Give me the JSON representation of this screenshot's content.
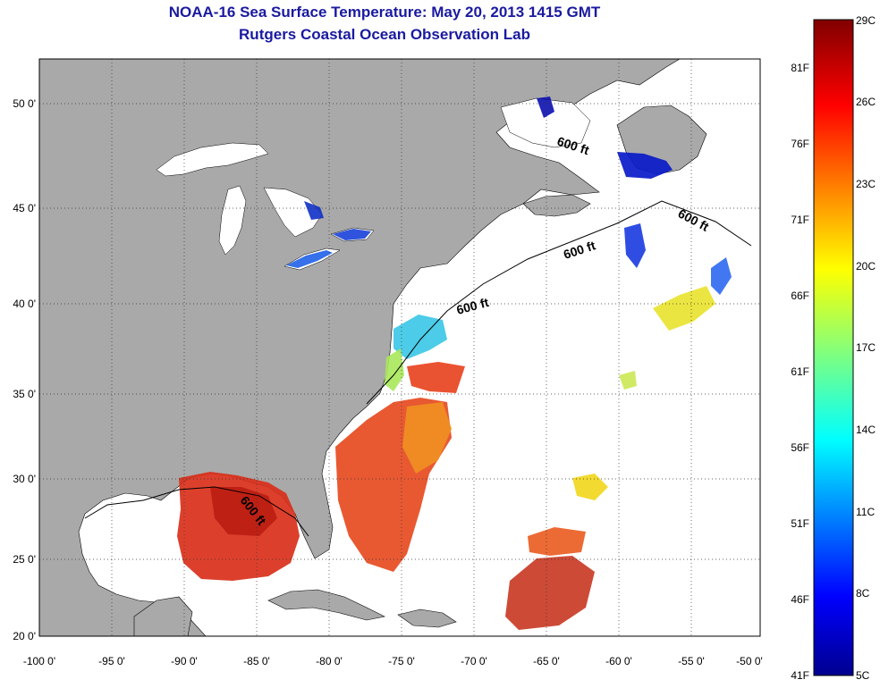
{
  "title": {
    "line1": "NOAA-16 Sea Surface Temperature:  May 20, 2013 1415 GMT",
    "line2": "Rutgers Coastal Ocean Observation Lab"
  },
  "map": {
    "lon_labels": [
      "-100 0'",
      "-95 0'",
      "-90 0'",
      "-85 0'",
      "-80 0'",
      "-75 0'",
      "-70 0'",
      "-65 0'",
      "-60 0'",
      "-55 0'",
      "-50 0'"
    ],
    "lat_labels": [
      "50 0'",
      "45 0'",
      "40 0'",
      "35 0'",
      "30 0'",
      "25 0'",
      "20 0'"
    ],
    "isobath_labels": [
      "600 ft",
      "600 ft",
      "600 ft",
      "600 ft",
      "600 ft"
    ],
    "colors": {
      "land": "#a9a9a9",
      "ocean": "#ffffff",
      "title": "#1a1aa0"
    }
  },
  "colorbar": {
    "celsius_labels": [
      "29C",
      "26C",
      "23C",
      "20C",
      "17C",
      "14C",
      "11C",
      "8C",
      "5C"
    ],
    "fahrenheit_labels": [
      "81F",
      "76F",
      "71F",
      "66F",
      "61F",
      "56F",
      "51F",
      "46F",
      "41F"
    ],
    "range_c": [
      5,
      29
    ]
  }
}
